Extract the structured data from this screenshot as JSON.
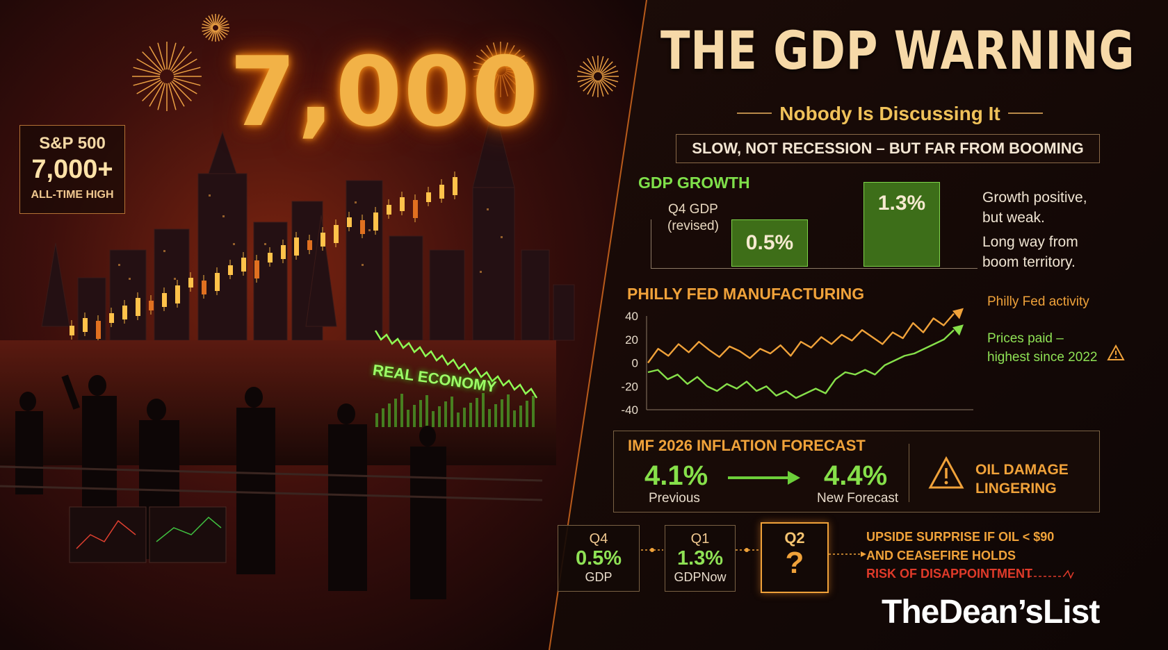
{
  "left": {
    "sp_box": {
      "line1": "S&P 500",
      "line2": "7,000+",
      "line3": "ALL-TIME HIGH"
    },
    "big_number": "7,000",
    "real_economy": "REAL ECONOMY"
  },
  "header": {
    "title": "THE GDP WARNING",
    "subtitle": "Nobody Is Discussing It",
    "banner": "SLOW, NOT RECESSION – BUT FAR FROM BOOMING"
  },
  "gdp": {
    "heading": "GDP GROWTH",
    "label_line1": "Q4 GDP",
    "label_line2": "(revised)",
    "bar_a": "0.5%",
    "bar_b": "1.3%",
    "note_line1": "Growth positive,",
    "note_line2": "but weak.",
    "note_line3": "Long way from",
    "note_line4": "boom territory."
  },
  "philly": {
    "heading": "PHILLY FED MANUFACTURING",
    "legend_activity": "Philly Fed activity",
    "legend_prices_1": "Prices paid –",
    "legend_prices_2": "highest since 2022"
  },
  "chart_data": {
    "type": "line",
    "title": "PHILLY FED MANUFACTURING",
    "yticks": [
      40,
      20,
      0,
      -20,
      -40
    ],
    "ylim": [
      -40,
      40
    ],
    "series": [
      {
        "name": "Philly Fed activity",
        "color": "#f0a23a",
        "values": [
          0,
          12,
          6,
          16,
          9,
          18,
          11,
          5,
          14,
          10,
          4,
          12,
          8,
          15,
          6,
          18,
          13,
          22,
          16,
          24,
          19,
          28,
          22,
          16,
          26,
          21,
          34,
          26,
          38,
          32,
          42
        ]
      },
      {
        "name": "Prices paid – highest since 2022",
        "color": "#86e04a",
        "values": [
          -8,
          -6,
          -14,
          -10,
          -18,
          -12,
          -20,
          -24,
          -18,
          -22,
          -16,
          -24,
          -20,
          -28,
          -24,
          -30,
          -26,
          -22,
          -26,
          -14,
          -8,
          -10,
          -6,
          -10,
          -2,
          2,
          6,
          8,
          12,
          16,
          20,
          28
        ]
      }
    ]
  },
  "imf": {
    "heading": "IMF 2026 INFLATION FORECAST",
    "prev_value": "4.1%",
    "prev_label": "Previous",
    "new_value": "4.4%",
    "new_label": "New Forecast",
    "oil_line1": "OIL DAMAGE",
    "oil_line2": "LINGERING"
  },
  "timeline": {
    "q4": {
      "quarter": "Q4",
      "value": "0.5%",
      "label": "GDP"
    },
    "q1": {
      "quarter": "Q1",
      "value": "1.3%",
      "label": "GDPNow"
    },
    "q2": {
      "quarter": "Q2",
      "value": "?"
    },
    "upside_line1": "UPSIDE SURPRISE IF OIL < $90",
    "upside_line2": "AND CEASEFIRE HOLDS",
    "risk": "RISK OF DISAPPOINTMENT"
  },
  "brand": "TheDean’sList",
  "colors": {
    "accent_orange": "#f0a23a",
    "accent_green": "#86e04a",
    "risk_red": "#e03a2a"
  }
}
